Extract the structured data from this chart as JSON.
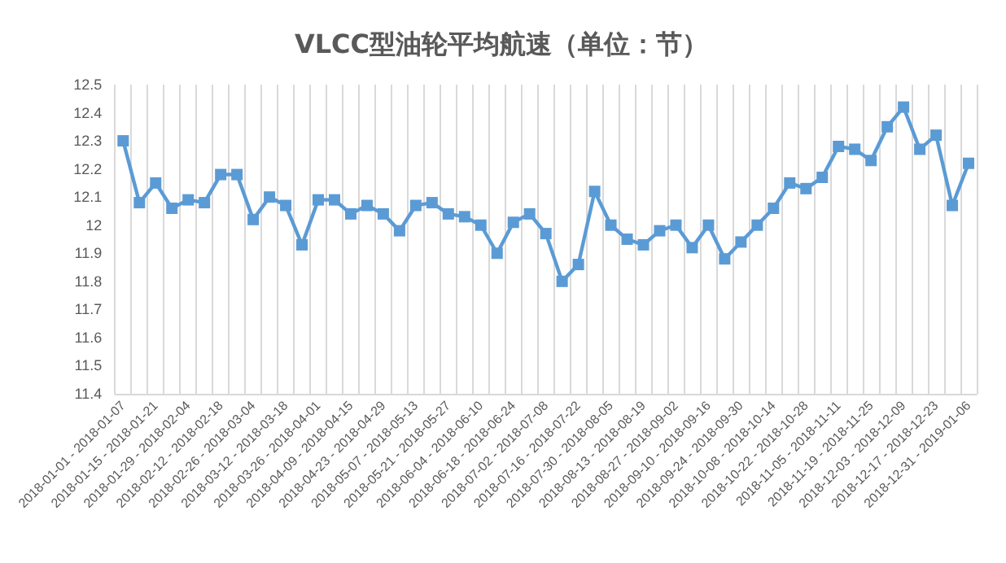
{
  "chart_data": {
    "type": "line",
    "title": "VLCC型油轮平均航速（单位：节）",
    "categories": [
      "2018-01-01 - 2018-01-07",
      null,
      "2018-01-15 - 2018-01-21",
      null,
      "2018-01-29 - 2018-02-04",
      null,
      "2018-02-12 - 2018-02-18",
      null,
      "2018-02-26 - 2018-03-04",
      null,
      "2018-03-12 - 2018-03-18",
      null,
      "2018-03-26 - 2018-04-01",
      null,
      "2018-04-09 - 2018-04-15",
      null,
      "2018-04-23 - 2018-04-29",
      null,
      "2018-05-07 - 2018-05-13",
      null,
      "2018-05-21 - 2018-05-27",
      null,
      "2018-06-04 - 2018-06-10",
      null,
      "2018-06-18 - 2018-06-24",
      null,
      "2018-07-02 - 2018-07-08",
      null,
      "2018-07-16 - 2018-07-22",
      null,
      "2018-07-30 - 2018-08-05",
      null,
      "2018-08-13 - 2018-08-19",
      null,
      "2018-08-27 - 2018-09-02",
      null,
      "2018-09-10 - 2018-09-16",
      null,
      "2018-09-24 - 2018-09-30",
      null,
      "2018-10-08 - 2018-10-14",
      null,
      "2018-10-22 - 2018-10-28",
      null,
      "2018-11-05 - 2018-11-11",
      null,
      "2018-11-19 - 2018-11-25",
      null,
      "2018-12-03 - 2018-12-09",
      null,
      "2018-12-17 - 2018-12-23",
      null,
      "2018-12-31 - 2019-01-06"
    ],
    "series": [
      {
        "color": "#5b9bd5",
        "values": [
          12.3,
          12.08,
          12.15,
          12.06,
          12.09,
          12.08,
          12.18,
          12.18,
          12.02,
          12.1,
          12.07,
          11.93,
          12.09,
          12.09,
          12.04,
          12.07,
          12.04,
          11.98,
          12.07,
          12.08,
          12.04,
          12.03,
          12.0,
          11.9,
          12.01,
          12.04,
          11.97,
          11.8,
          11.86,
          12.12,
          12.0,
          11.95,
          11.93,
          11.98,
          12.0,
          11.92,
          12.0,
          11.88,
          11.94,
          12.0,
          12.06,
          12.15,
          12.13,
          12.17,
          12.28,
          12.27,
          12.23,
          12.35,
          12.42,
          12.27,
          12.32,
          12.07,
          12.22
        ]
      }
    ],
    "ylim": [
      11.4,
      12.5
    ],
    "yticks": [
      11.4,
      11.5,
      11.6,
      11.7,
      11.8,
      11.9,
      12,
      12.1,
      12.2,
      12.3,
      12.4,
      12.5
    ],
    "grid": "x",
    "marker": "square",
    "line_style": "solid"
  }
}
